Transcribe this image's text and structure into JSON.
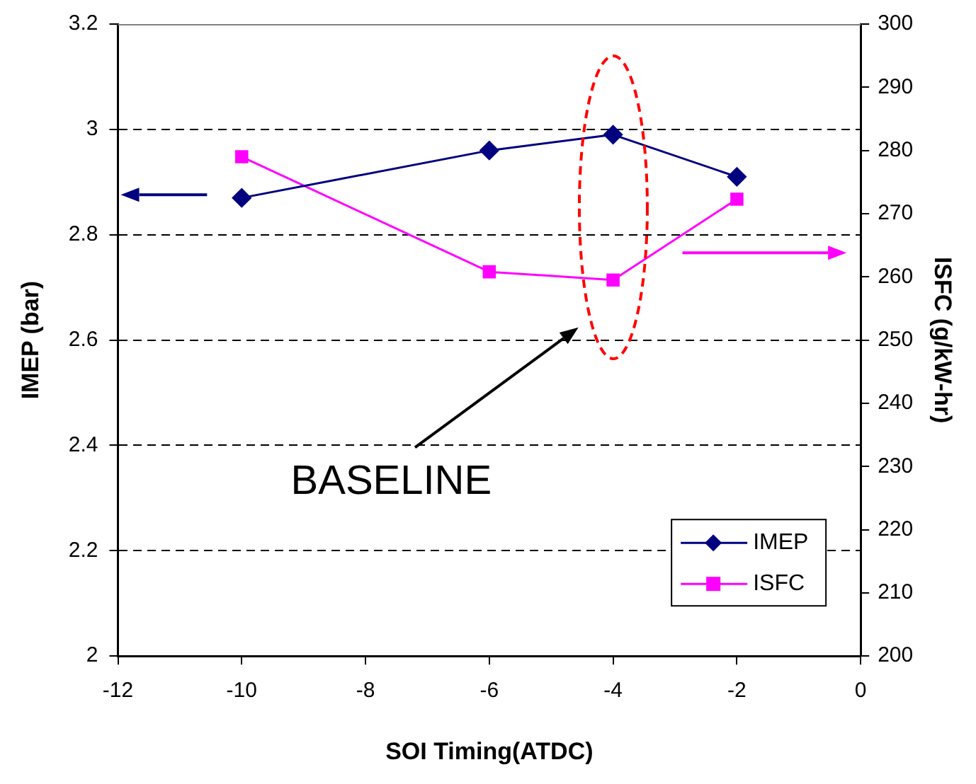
{
  "chart_data": {
    "type": "line",
    "xlabel": "SOI Timing(ATDC)",
    "ylabel": "IMEP (bar)",
    "y2label": "ISFC (g/kW-hr)",
    "x": [
      -10,
      -6,
      -4,
      -2
    ],
    "series": [
      {
        "name": "IMEP",
        "color": "#000080",
        "values": [
          2.87,
          2.96,
          2.99,
          2.91
        ],
        "marker": "diamond"
      },
      {
        "name": "ISFC",
        "color": "#ff00ff",
        "values": [
          279,
          260.8,
          259.5,
          272.3
        ],
        "marker": "square",
        "axis": "y2"
      }
    ],
    "xlim": [
      -12,
      0
    ],
    "xticks": [
      -12,
      -10,
      -8,
      -6,
      -4,
      -2,
      0
    ],
    "ylim": [
      2,
      3.2
    ],
    "yticks": [
      2,
      2.2,
      2.4,
      2.6,
      2.8,
      3,
      3.2
    ],
    "y2lim": [
      200,
      300
    ],
    "y2ticks": [
      200,
      210,
      220,
      230,
      240,
      250,
      260,
      270,
      280,
      290,
      300
    ],
    "grid": "y",
    "legend": "bottom right",
    "line_style": "solid",
    "annotations": [
      "BASELINE"
    ]
  }
}
